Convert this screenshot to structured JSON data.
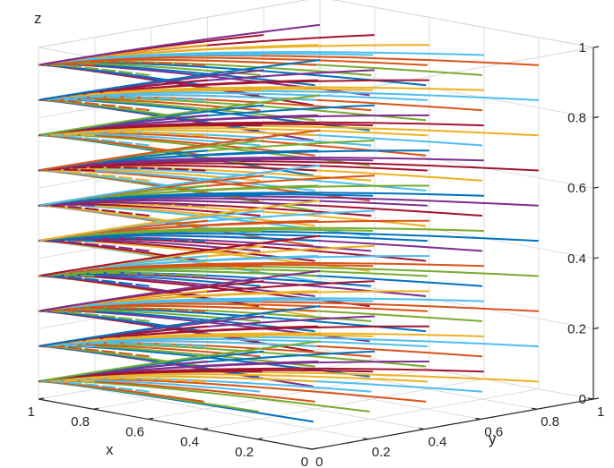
{
  "chart_data": {
    "type": "line",
    "projection": "3d",
    "title": "",
    "xlabel": "x",
    "ylabel": "y",
    "zlabel": "z",
    "xlim": [
      0,
      1
    ],
    "ylim": [
      0,
      1
    ],
    "zlim": [
      0,
      1
    ],
    "grid": true,
    "box": true,
    "legend": "none",
    "x_ticks": [
      "0",
      "0.2",
      "0.4",
      "0.6",
      "0.8",
      "1"
    ],
    "y_ticks": [
      "0",
      "0.2",
      "0.4",
      "0.6",
      "0.8",
      "1"
    ],
    "z_ticks": [
      "0",
      "0.2",
      "0.4",
      "0.6",
      "0.8",
      "1"
    ],
    "colors": [
      "#0072BD",
      "#D95319",
      "#EDB120",
      "#7E2F8E",
      "#77AC30",
      "#4DBEEE",
      "#A2142F"
    ],
    "trajectory_grid": {
      "x_start": [
        0.1,
        0.3,
        0.5,
        0.7,
        0.9
      ],
      "y_start": [
        0.1,
        0.3,
        0.5,
        0.7,
        0.9
      ],
      "z_start": [
        0.05,
        0.15,
        0.25,
        0.35,
        0.45,
        0.55,
        0.65,
        0.75,
        0.85,
        0.95
      ]
    }
  }
}
